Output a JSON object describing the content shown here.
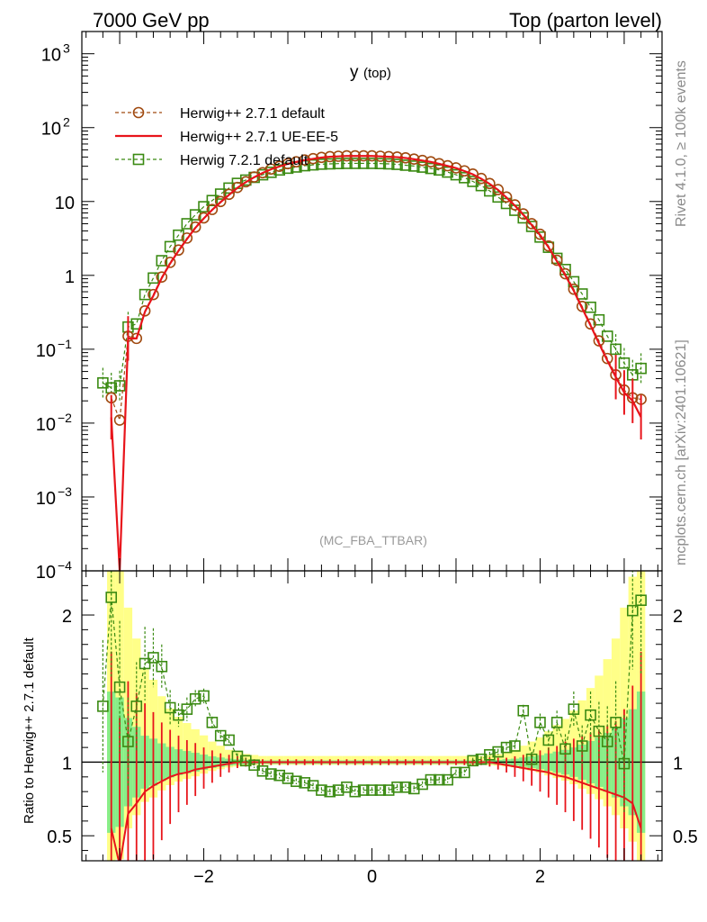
{
  "header": {
    "energy": "7000 GeV pp",
    "process": "Top (parton level)"
  },
  "side_text": {
    "rivet": "Rivet 4.1.0, ≥ 100k events",
    "mcplots": "mcplots.cern.ch [arXiv:2401.10621]"
  },
  "chart_data": {
    "type": "line",
    "title": "y",
    "title_sub": "(top)",
    "analysis": "(MC_FBA_TTBAR)",
    "xlim": [
      -3.45,
      3.45
    ],
    "top": {
      "yscale": "log",
      "ylim": [
        0.0001,
        2000
      ],
      "tick_labels": [
        "10",
        "3",
        "10",
        "2",
        "10",
        "1",
        "10",
        "−1",
        "10",
        "−2",
        "10",
        "−3",
        "10",
        "−4"
      ]
    },
    "ratio": {
      "ylabel": "Ratio to Herwig++ 2.7.1 default",
      "ylim": [
        0.33,
        2.3
      ],
      "ticks": [
        "2",
        "1",
        "0.5"
      ]
    },
    "x_ticks": [
      "−2",
      "0",
      "2"
    ],
    "legend": {
      "position": "top-left",
      "entries": [
        "Herwig++ 2.7.1 default",
        "Herwig++ 2.7.1 UE-EE-5",
        "Herwig 7.2.1 default"
      ]
    },
    "series": [
      {
        "name": "Herwig++ 2.7.1 default",
        "color": "#a04a10",
        "marker": "circle",
        "style": "dashed",
        "x": [
          -3.1,
          -3.0,
          -2.9,
          -2.8,
          -2.7,
          -2.6,
          -2.5,
          -2.4,
          -2.3,
          -2.2,
          -2.1,
          -2.0,
          -1.9,
          -1.8,
          -1.7,
          -1.6,
          -1.5,
          -1.4,
          -1.3,
          -1.2,
          -1.1,
          -1.0,
          -0.9,
          -0.8,
          -0.7,
          -0.6,
          -0.5,
          -0.4,
          -0.3,
          -0.2,
          -0.1,
          0.0,
          0.1,
          0.2,
          0.3,
          0.4,
          0.5,
          0.6,
          0.7,
          0.8,
          0.9,
          1.0,
          1.1,
          1.2,
          1.3,
          1.4,
          1.5,
          1.6,
          1.7,
          1.8,
          1.9,
          2.0,
          2.1,
          2.2,
          2.3,
          2.4,
          2.5,
          2.6,
          2.7,
          2.8,
          2.9,
          3.0,
          3.1,
          3.2
        ],
        "y": [
          0.022,
          0.011,
          0.15,
          0.14,
          0.33,
          0.55,
          0.95,
          1.5,
          2.2,
          3.2,
          4.5,
          6.0,
          7.8,
          10.0,
          12.5,
          15.5,
          18.5,
          21.5,
          24.5,
          27.5,
          30.0,
          32.5,
          34.5,
          36.5,
          38.0,
          39.5,
          40.5,
          41.0,
          41.5,
          41.5,
          41.5,
          41.5,
          41.0,
          40.5,
          40.0,
          39.0,
          37.5,
          36.0,
          34.5,
          32.5,
          30.5,
          28.5,
          26.0,
          23.5,
          20.5,
          17.5,
          14.5,
          11.5,
          9.0,
          6.8,
          5.0,
          3.6,
          2.5,
          1.6,
          1.05,
          0.65,
          0.38,
          0.22,
          0.13,
          0.075,
          0.045,
          0.028,
          0.022,
          0.021
        ],
        "ratio": [
          1.0,
          1.0,
          1.0,
          1.0,
          1.0,
          1.0,
          1.0,
          1.0,
          1.0,
          1.0,
          1.0,
          1.0,
          1.0,
          1.0,
          1.0,
          1.0,
          1.0,
          1.0,
          1.0,
          1.0,
          1.0,
          1.0,
          1.0,
          1.0,
          1.0,
          1.0,
          1.0,
          1.0,
          1.0,
          1.0,
          1.0,
          1.0,
          1.0,
          1.0,
          1.0,
          1.0,
          1.0,
          1.0,
          1.0,
          1.0,
          1.0,
          1.0,
          1.0,
          1.0,
          1.0,
          1.0,
          1.0,
          1.0,
          1.0,
          1.0,
          1.0,
          1.0,
          1.0,
          1.0,
          1.0,
          1.0,
          1.0,
          1.0,
          1.0,
          1.0,
          1.0,
          1.0,
          1.0,
          1.0
        ],
        "band": [
          1.2,
          1.1,
          0.75,
          0.6,
          0.45,
          0.4,
          0.32,
          0.26,
          0.22,
          0.19,
          0.16,
          0.13,
          0.1,
          0.08,
          0.06,
          0.05,
          0.04,
          0.035,
          0.03,
          0.03,
          0.03,
          0.03,
          0.03,
          0.03,
          0.03,
          0.03,
          0.03,
          0.03,
          0.03,
          0.03,
          0.03,
          0.03,
          0.03,
          0.03,
          0.03,
          0.03,
          0.03,
          0.03,
          0.03,
          0.03,
          0.03,
          0.03,
          0.03,
          0.03,
          0.03,
          0.035,
          0.04,
          0.05,
          0.06,
          0.08,
          0.1,
          0.12,
          0.15,
          0.18,
          0.21,
          0.25,
          0.3,
          0.36,
          0.42,
          0.5,
          0.6,
          0.75,
          0.9,
          1.2
        ]
      },
      {
        "name": "Herwig++ 2.7.1 UE-EE-5",
        "color": "#e8141b",
        "marker": "none",
        "style": "solid",
        "x": [
          -3.1,
          -3.0,
          -2.9,
          -2.8,
          -2.7,
          -2.6,
          -2.5,
          -2.4,
          -2.3,
          -2.2,
          -2.1,
          -2.0,
          -1.9,
          -1.8,
          -1.7,
          -1.6,
          -1.5,
          -1.4,
          -1.3,
          -1.2,
          -1.1,
          -1.0,
          -0.9,
          -0.8,
          -0.7,
          -0.6,
          -0.5,
          -0.4,
          -0.3,
          -0.2,
          -0.1,
          0.0,
          0.1,
          0.2,
          0.3,
          0.4,
          0.5,
          0.6,
          0.7,
          0.8,
          0.9,
          1.0,
          1.1,
          1.2,
          1.3,
          1.4,
          1.5,
          1.6,
          1.7,
          1.8,
          1.9,
          2.0,
          2.1,
          2.2,
          2.3,
          2.4,
          2.5,
          2.6,
          2.7,
          2.8,
          2.9,
          3.0,
          3.1,
          3.2
        ],
        "y": [
          0.012,
          0.0001,
          0.14,
          0.14,
          0.32,
          0.53,
          0.92,
          1.45,
          2.15,
          3.1,
          4.4,
          5.9,
          7.7,
          9.8,
          12.3,
          15.3,
          18.3,
          21.3,
          24.3,
          27.3,
          29.8,
          32.3,
          34.3,
          36.3,
          37.8,
          39.3,
          40.3,
          40.8,
          41.3,
          41.3,
          41.3,
          41.3,
          40.8,
          40.3,
          39.8,
          38.8,
          37.3,
          35.8,
          34.3,
          32.3,
          30.3,
          28.3,
          25.8,
          23.3,
          20.3,
          17.3,
          14.3,
          11.3,
          8.8,
          6.6,
          4.8,
          3.5,
          2.4,
          1.55,
          1.0,
          0.62,
          0.36,
          0.21,
          0.12,
          0.07,
          0.042,
          0.026,
          0.02,
          0.012
        ],
        "ratio": [
          0.55,
          0.3,
          0.65,
          0.72,
          0.8,
          0.84,
          0.87,
          0.9,
          0.92,
          0.93,
          0.95,
          0.96,
          0.97,
          0.98,
          0.99,
          1.0,
          1.0,
          1.0,
          1.0,
          1.0,
          1.0,
          1.0,
          1.0,
          1.0,
          1.0,
          1.0,
          1.0,
          1.0,
          1.0,
          1.0,
          1.0,
          1.0,
          1.0,
          1.0,
          1.0,
          1.0,
          1.0,
          1.0,
          1.0,
          1.0,
          1.0,
          1.0,
          1.0,
          1.0,
          1.0,
          1.0,
          0.99,
          0.98,
          0.97,
          0.96,
          0.95,
          0.94,
          0.93,
          0.91,
          0.9,
          0.88,
          0.86,
          0.84,
          0.82,
          0.8,
          0.78,
          0.76,
          0.72,
          0.55
        ],
        "err": [
          1.2,
          1.0,
          0.9,
          0.75,
          0.6,
          0.5,
          0.4,
          0.32,
          0.26,
          0.22,
          0.18,
          0.14,
          0.11,
          0.08,
          0.06,
          0.04,
          0.03,
          0.02,
          0.02,
          0.02,
          0.02,
          0.02,
          0.02,
          0.02,
          0.02,
          0.02,
          0.02,
          0.02,
          0.02,
          0.02,
          0.02,
          0.02,
          0.02,
          0.02,
          0.02,
          0.02,
          0.02,
          0.02,
          0.02,
          0.02,
          0.02,
          0.02,
          0.02,
          0.02,
          0.02,
          0.03,
          0.04,
          0.05,
          0.07,
          0.09,
          0.11,
          0.14,
          0.17,
          0.2,
          0.24,
          0.28,
          0.32,
          0.36,
          0.4,
          0.45,
          0.5,
          0.6,
          0.8,
          1.2
        ]
      },
      {
        "name": "Herwig 7.2.1 default",
        "color": "#3a8a12",
        "marker": "square",
        "style": "dashed",
        "x": [
          -3.2,
          -3.1,
          -3.0,
          -2.9,
          -2.8,
          -2.7,
          -2.6,
          -2.5,
          -2.4,
          -2.3,
          -2.2,
          -2.1,
          -2.0,
          -1.9,
          -1.8,
          -1.7,
          -1.6,
          -1.5,
          -1.4,
          -1.3,
          -1.2,
          -1.1,
          -1.0,
          -0.9,
          -0.8,
          -0.7,
          -0.6,
          -0.5,
          -0.4,
          -0.3,
          -0.2,
          -0.1,
          0.0,
          0.1,
          0.2,
          0.3,
          0.4,
          0.5,
          0.6,
          0.7,
          0.8,
          0.9,
          1.0,
          1.1,
          1.2,
          1.3,
          1.4,
          1.5,
          1.6,
          1.7,
          1.8,
          1.9,
          2.0,
          2.1,
          2.2,
          2.3,
          2.4,
          2.5,
          2.6,
          2.7,
          2.8,
          2.9,
          3.0,
          3.1,
          3.2
        ],
        "y": [
          0.035,
          0.03,
          0.032,
          0.2,
          0.22,
          0.55,
          0.92,
          1.58,
          2.45,
          3.5,
          5.0,
          6.6,
          8.5,
          10.3,
          12.6,
          15.2,
          17.6,
          19.5,
          21.2,
          23.0,
          24.8,
          26.7,
          28.2,
          29.3,
          30.5,
          31.3,
          32.0,
          32.3,
          32.6,
          32.8,
          32.8,
          32.8,
          32.8,
          32.6,
          32.3,
          31.8,
          31.0,
          30.2,
          29.2,
          28.0,
          26.7,
          25.0,
          23.0,
          21.0,
          18.7,
          16.4,
          13.9,
          11.5,
          9.4,
          7.6,
          6.0,
          4.6,
          3.3,
          2.4,
          1.7,
          1.2,
          0.82,
          0.56,
          0.37,
          0.25,
          0.15,
          0.1,
          0.065,
          0.045,
          0.055
        ],
        "ratio": [
          1.38,
          2.12,
          1.51,
          1.14,
          1.38,
          1.67,
          1.71,
          1.65,
          1.37,
          1.32,
          1.36,
          1.43,
          1.45,
          1.27,
          1.18,
          1.15,
          1.04,
          1.01,
          0.98,
          0.94,
          0.92,
          0.91,
          0.89,
          0.87,
          0.86,
          0.84,
          0.81,
          0.8,
          0.81,
          0.83,
          0.8,
          0.81,
          0.81,
          0.81,
          0.81,
          0.83,
          0.83,
          0.82,
          0.85,
          0.88,
          0.88,
          0.88,
          0.93,
          0.93,
          1.01,
          1.02,
          1.05,
          1.07,
          1.1,
          1.11,
          1.35,
          1.02,
          1.27,
          1.15,
          1.27,
          1.09,
          1.36,
          1.11,
          1.32,
          1.21,
          1.14,
          1.27,
          0.99,
          2.03,
          2.1
        ],
        "err": [
          0.45,
          0.55,
          0.45,
          0.3,
          0.3,
          0.25,
          0.2,
          0.15,
          0.12,
          0.08,
          0.08,
          0.06,
          0.05,
          0.04,
          0.03,
          0.03,
          0.02,
          0.02,
          0.02,
          0.02,
          0.02,
          0.02,
          0.02,
          0.02,
          0.02,
          0.02,
          0.02,
          0.02,
          0.02,
          0.02,
          0.02,
          0.02,
          0.02,
          0.02,
          0.02,
          0.02,
          0.02,
          0.02,
          0.02,
          0.02,
          0.02,
          0.02,
          0.02,
          0.02,
          0.02,
          0.02,
          0.02,
          0.02,
          0.03,
          0.03,
          0.04,
          0.05,
          0.06,
          0.07,
          0.08,
          0.1,
          0.12,
          0.14,
          0.16,
          0.2,
          0.24,
          0.28,
          0.33,
          0.4,
          0.5
        ]
      }
    ]
  }
}
